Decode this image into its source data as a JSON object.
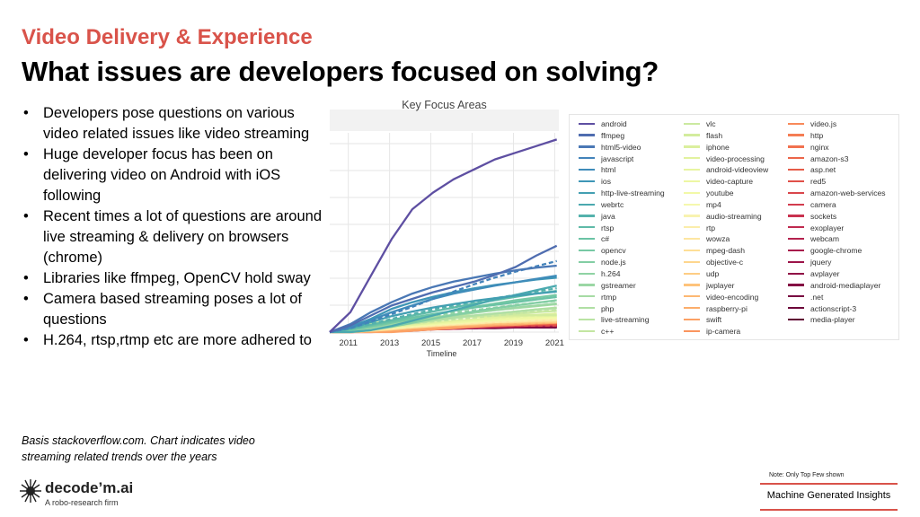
{
  "header": {
    "subtitle": "Video Delivery & Experience",
    "title": "What issues are developers focused on solving?"
  },
  "bullets": [
    "Developers pose questions on various video related issues like video streaming",
    "Huge developer focus has been on delivering video on Android with iOS following",
    "Recent times a lot of questions are around live streaming & delivery on browsers (chrome)",
    "Libraries like ffmpeg, OpenCV hold sway",
    "Camera based streaming poses a lot of questions",
    "H.264, rtsp,rtmp etc are more adhered to"
  ],
  "basis_note": "Basis stackoverflow.com. Chart indicates video streaming related trends over the years",
  "footer": {
    "logo_name": "decode’m.ai",
    "logo_tagline": "A robo-research firm",
    "note": "Note: Only Top Few shown",
    "badge": "Machine Generated Insights",
    "accent_color": "#d9534a"
  },
  "chart_data": {
    "type": "line",
    "title": "Key Focus Areas",
    "xlabel": "Timeline",
    "ylabel": "",
    "x_ticks": [
      "2011",
      "2013",
      "2015",
      "2017",
      "2019",
      "2021"
    ],
    "xlim": [
      2010.1,
      2021.2
    ],
    "grid": true,
    "legend_placement": "right",
    "series": [
      {
        "name": "android",
        "color": "#5e4fa2",
        "values": [
          0,
          0.03,
          0.085,
          0.14,
          0.185,
          0.21,
          0.23,
          0.245,
          0.26,
          0.27,
          0.28,
          0.29
        ]
      },
      {
        "name": "ffmpeg",
        "color": "#4f6db0",
        "values": [
          0,
          0.01,
          0.025,
          0.04,
          0.05,
          0.06,
          0.068,
          0.076,
          0.086,
          0.098,
          0.115,
          0.13
        ]
      },
      {
        "name": "html5-video",
        "color": "#4a78b5",
        "values": [
          0,
          0.012,
          0.03,
          0.045,
          0.058,
          0.068,
          0.076,
          0.082,
          0.088,
          0.093,
          0.097,
          0.1
        ]
      },
      {
        "name": "javascript",
        "color": "#4383ba",
        "values": [
          0,
          0.006,
          0.016,
          0.027,
          0.038,
          0.05,
          0.061,
          0.072,
          0.082,
          0.091,
          0.099,
          0.107
        ]
      },
      {
        "name": "html",
        "color": "#3f8cba",
        "values": [
          0,
          0.007,
          0.018,
          0.03,
          0.04,
          0.05,
          0.058,
          0.064,
          0.07,
          0.075,
          0.08,
          0.085
        ]
      },
      {
        "name": "ios",
        "color": "#3e96b6",
        "values": [
          0,
          0.008,
          0.02,
          0.035,
          0.045,
          0.053,
          0.06,
          0.066,
          0.071,
          0.075,
          0.079,
          0.082
        ]
      },
      {
        "name": "http-live-streaming",
        "color": "#439fb2",
        "values": [
          0,
          0.006,
          0.015,
          0.024,
          0.031,
          0.037,
          0.042,
          0.047,
          0.051,
          0.055,
          0.058,
          0.061
        ]
      },
      {
        "name": "webrtc",
        "color": "#4ba9af",
        "values": [
          0,
          0,
          0.003,
          0.009,
          0.017,
          0.025,
          0.033,
          0.041,
          0.049,
          0.056,
          0.063,
          0.07
        ]
      },
      {
        "name": "java",
        "color": "#54b2ac",
        "values": [
          0,
          0.005,
          0.012,
          0.02,
          0.027,
          0.034,
          0.04,
          0.046,
          0.051,
          0.056,
          0.061,
          0.066
        ]
      },
      {
        "name": "rtsp",
        "color": "#5fbaa8",
        "values": [
          0,
          0.005,
          0.011,
          0.018,
          0.025,
          0.031,
          0.037,
          0.043,
          0.048,
          0.053,
          0.058,
          0.062
        ]
      },
      {
        "name": "c#",
        "color": "#6bc3a5",
        "values": [
          0,
          0.004,
          0.01,
          0.016,
          0.022,
          0.027,
          0.032,
          0.037,
          0.041,
          0.045,
          0.049,
          0.053
        ]
      },
      {
        "name": "opencv",
        "color": "#77c9a4",
        "values": [
          0,
          0.003,
          0.008,
          0.014,
          0.02,
          0.026,
          0.032,
          0.038,
          0.043,
          0.048,
          0.052,
          0.056
        ]
      },
      {
        "name": "node.js",
        "color": "#83cea4",
        "values": [
          0,
          0,
          0.003,
          0.008,
          0.014,
          0.02,
          0.026,
          0.031,
          0.036,
          0.04,
          0.044,
          0.048
        ]
      },
      {
        "name": "h.264",
        "color": "#8fd3a4",
        "values": [
          0,
          0.004,
          0.009,
          0.015,
          0.02,
          0.025,
          0.029,
          0.033,
          0.037,
          0.041,
          0.044,
          0.047
        ]
      },
      {
        "name": "gstreamer",
        "color": "#9bd7a4",
        "values": [
          0,
          0.003,
          0.007,
          0.012,
          0.017,
          0.021,
          0.025,
          0.029,
          0.033,
          0.037,
          0.04,
          0.043
        ]
      },
      {
        "name": "rtmp",
        "color": "#a6dba4",
        "values": [
          0,
          0.003,
          0.008,
          0.013,
          0.018,
          0.022,
          0.026,
          0.03,
          0.033,
          0.036,
          0.039,
          0.042
        ]
      },
      {
        "name": "php",
        "color": "#b0dfa4",
        "values": [
          0,
          0.003,
          0.007,
          0.011,
          0.015,
          0.019,
          0.022,
          0.025,
          0.028,
          0.031,
          0.034,
          0.036
        ]
      },
      {
        "name": "live-streaming",
        "color": "#bae3a3",
        "values": [
          0,
          0.002,
          0.005,
          0.009,
          0.013,
          0.017,
          0.021,
          0.025,
          0.028,
          0.031,
          0.034,
          0.037
        ]
      },
      {
        "name": "c++",
        "color": "#c3e6a2",
        "values": [
          0,
          0.002,
          0.005,
          0.009,
          0.013,
          0.016,
          0.019,
          0.022,
          0.025,
          0.028,
          0.031,
          0.033
        ]
      },
      {
        "name": "vlc",
        "color": "#cbe9a0",
        "values": [
          0,
          0.003,
          0.007,
          0.011,
          0.015,
          0.018,
          0.021,
          0.024,
          0.026,
          0.028,
          0.03,
          0.032
        ]
      },
      {
        "name": "flash",
        "color": "#d3ec9e",
        "values": [
          0,
          0.006,
          0.013,
          0.018,
          0.021,
          0.023,
          0.024,
          0.025,
          0.025,
          0.026,
          0.026,
          0.026
        ]
      },
      {
        "name": "iphone",
        "color": "#dbef9e",
        "values": [
          0,
          0.005,
          0.011,
          0.016,
          0.019,
          0.021,
          0.022,
          0.023,
          0.024,
          0.024,
          0.025,
          0.025
        ]
      },
      {
        "name": "video-processing",
        "color": "#e2f29f",
        "values": [
          0,
          0.002,
          0.005,
          0.008,
          0.011,
          0.014,
          0.017,
          0.019,
          0.022,
          0.024,
          0.026,
          0.028
        ]
      },
      {
        "name": "android-videoview",
        "color": "#e8f5a1",
        "values": [
          0,
          0.002,
          0.005,
          0.009,
          0.012,
          0.015,
          0.017,
          0.019,
          0.021,
          0.023,
          0.024,
          0.025
        ]
      },
      {
        "name": "video-capture",
        "color": "#edf7a3",
        "values": [
          0,
          0.002,
          0.005,
          0.008,
          0.011,
          0.013,
          0.015,
          0.017,
          0.019,
          0.021,
          0.022,
          0.024
        ]
      },
      {
        "name": "youtube",
        "color": "#f2f9a7",
        "values": [
          0,
          0.002,
          0.005,
          0.008,
          0.01,
          0.012,
          0.014,
          0.016,
          0.018,
          0.02,
          0.021,
          0.022
        ]
      },
      {
        "name": "mp4",
        "color": "#f5f8ad",
        "values": [
          0,
          0.002,
          0.004,
          0.007,
          0.009,
          0.012,
          0.014,
          0.016,
          0.018,
          0.019,
          0.021,
          0.022
        ]
      },
      {
        "name": "audio-streaming",
        "color": "#f8f3b0",
        "values": [
          0,
          0.002,
          0.004,
          0.006,
          0.009,
          0.011,
          0.013,
          0.015,
          0.017,
          0.018,
          0.02,
          0.021
        ]
      },
      {
        "name": "rtp",
        "color": "#fbedab",
        "values": [
          0,
          0.002,
          0.004,
          0.006,
          0.008,
          0.01,
          0.012,
          0.014,
          0.015,
          0.017,
          0.018,
          0.019
        ]
      },
      {
        "name": "wowza",
        "color": "#fde6a1",
        "values": [
          0,
          0.001,
          0.003,
          0.006,
          0.008,
          0.01,
          0.012,
          0.013,
          0.015,
          0.016,
          0.017,
          0.018
        ]
      },
      {
        "name": "mpeg-dash",
        "color": "#fedf97",
        "values": [
          0,
          0,
          0.002,
          0.004,
          0.007,
          0.009,
          0.011,
          0.013,
          0.015,
          0.016,
          0.018,
          0.019
        ]
      },
      {
        "name": "objective-c",
        "color": "#fed68d",
        "values": [
          0,
          0.002,
          0.005,
          0.008,
          0.01,
          0.012,
          0.013,
          0.014,
          0.015,
          0.015,
          0.016,
          0.016
        ]
      },
      {
        "name": "udp",
        "color": "#fecd84",
        "values": [
          0,
          0.001,
          0.003,
          0.005,
          0.007,
          0.009,
          0.011,
          0.012,
          0.014,
          0.015,
          0.016,
          0.017
        ]
      },
      {
        "name": "jwplayer",
        "color": "#fec37b",
        "values": [
          0,
          0.002,
          0.004,
          0.006,
          0.008,
          0.01,
          0.011,
          0.012,
          0.013,
          0.014,
          0.014,
          0.015
        ]
      },
      {
        "name": "video-encoding",
        "color": "#fdb873",
        "values": [
          0,
          0.001,
          0.003,
          0.005,
          0.007,
          0.009,
          0.01,
          0.011,
          0.012,
          0.013,
          0.014,
          0.015
        ]
      },
      {
        "name": "raspberry-pi",
        "color": "#fcad6b",
        "values": [
          0,
          0,
          0.001,
          0.003,
          0.005,
          0.007,
          0.009,
          0.01,
          0.012,
          0.013,
          0.014,
          0.015
        ]
      },
      {
        "name": "swift",
        "color": "#fca165",
        "values": [
          0,
          0,
          0,
          0,
          0.002,
          0.004,
          0.006,
          0.008,
          0.01,
          0.011,
          0.013,
          0.014
        ]
      },
      {
        "name": "ip-camera",
        "color": "#fa955f",
        "values": [
          0,
          0.001,
          0.002,
          0.004,
          0.006,
          0.007,
          0.009,
          0.01,
          0.011,
          0.012,
          0.013,
          0.014
        ]
      },
      {
        "name": "video.js",
        "color": "#f8895a",
        "values": [
          0,
          0,
          0.002,
          0.004,
          0.006,
          0.008,
          0.009,
          0.011,
          0.012,
          0.013,
          0.014,
          0.015
        ]
      },
      {
        "name": "http",
        "color": "#f57d54",
        "values": [
          0,
          0.001,
          0.002,
          0.004,
          0.006,
          0.007,
          0.009,
          0.01,
          0.011,
          0.012,
          0.013,
          0.014
        ]
      },
      {
        "name": "nginx",
        "color": "#f1714f",
        "values": [
          0,
          0,
          0.002,
          0.003,
          0.005,
          0.007,
          0.008,
          0.01,
          0.011,
          0.012,
          0.013,
          0.014
        ]
      },
      {
        "name": "amazon-s3",
        "color": "#ec6649",
        "values": [
          0,
          0,
          0.001,
          0.003,
          0.005,
          0.006,
          0.008,
          0.009,
          0.01,
          0.011,
          0.012,
          0.013
        ]
      },
      {
        "name": "asp.net",
        "color": "#e65b48",
        "values": [
          0,
          0.001,
          0.003,
          0.005,
          0.006,
          0.008,
          0.009,
          0.01,
          0.011,
          0.011,
          0.012,
          0.012
        ]
      },
      {
        "name": "red5",
        "color": "#e05049",
        "values": [
          0,
          0.002,
          0.004,
          0.006,
          0.007,
          0.008,
          0.009,
          0.009,
          0.01,
          0.01,
          0.01,
          0.01
        ]
      },
      {
        "name": "amazon-web-services",
        "color": "#d9464b",
        "values": [
          0,
          0,
          0.001,
          0.002,
          0.004,
          0.005,
          0.007,
          0.008,
          0.009,
          0.01,
          0.011,
          0.012
        ]
      },
      {
        "name": "camera",
        "color": "#d23c4e",
        "values": [
          0,
          0.001,
          0.002,
          0.003,
          0.005,
          0.006,
          0.007,
          0.008,
          0.009,
          0.01,
          0.011,
          0.012
        ]
      },
      {
        "name": "sockets",
        "color": "#c9324f",
        "values": [
          0,
          0.001,
          0.002,
          0.003,
          0.004,
          0.005,
          0.006,
          0.007,
          0.008,
          0.009,
          0.01,
          0.011
        ]
      },
      {
        "name": "exoplayer",
        "color": "#bf2a4f",
        "values": [
          0,
          0,
          0,
          0.001,
          0.002,
          0.004,
          0.005,
          0.007,
          0.008,
          0.009,
          0.01,
          0.011
        ]
      },
      {
        "name": "webcam",
        "color": "#b4224e",
        "values": [
          0,
          0.001,
          0.002,
          0.003,
          0.004,
          0.005,
          0.006,
          0.007,
          0.008,
          0.009,
          0.01,
          0.01
        ]
      },
      {
        "name": "google-chrome",
        "color": "#a81b4c",
        "values": [
          0,
          0.001,
          0.002,
          0.003,
          0.004,
          0.005,
          0.006,
          0.007,
          0.008,
          0.009,
          0.01,
          0.011
        ]
      },
      {
        "name": "jquery",
        "color": "#9c1449",
        "values": [
          0,
          0.001,
          0.002,
          0.003,
          0.004,
          0.005,
          0.006,
          0.007,
          0.008,
          0.008,
          0.009,
          0.009
        ]
      },
      {
        "name": "avplayer",
        "color": "#900d46",
        "values": [
          0,
          0,
          0.001,
          0.002,
          0.003,
          0.004,
          0.005,
          0.006,
          0.007,
          0.008,
          0.009,
          0.01
        ]
      },
      {
        "name": "android-mediaplayer",
        "color": "#840743",
        "values": [
          0,
          0.001,
          0.002,
          0.003,
          0.004,
          0.005,
          0.006,
          0.007,
          0.007,
          0.008,
          0.008,
          0.009
        ]
      },
      {
        "name": ".net",
        "color": "#780340",
        "values": [
          0,
          0.001,
          0.002,
          0.003,
          0.004,
          0.005,
          0.006,
          0.006,
          0.007,
          0.007,
          0.008,
          0.008
        ]
      },
      {
        "name": "actionscript-3",
        "color": "#6c0139",
        "values": [
          0,
          0.002,
          0.004,
          0.005,
          0.006,
          0.006,
          0.007,
          0.007,
          0.007,
          0.007,
          0.007,
          0.007
        ]
      },
      {
        "name": "media-player",
        "color": "#5e0032",
        "values": [
          0,
          0.001,
          0.002,
          0.003,
          0.004,
          0.005,
          0.005,
          0.006,
          0.006,
          0.007,
          0.007,
          0.008
        ]
      }
    ],
    "x": [
      2010.1,
      2011.1,
      2012.1,
      2013.1,
      2014.1,
      2015.1,
      2016.1,
      2017.1,
      2018.1,
      2019.1,
      2020.1,
      2021.1
    ]
  }
}
